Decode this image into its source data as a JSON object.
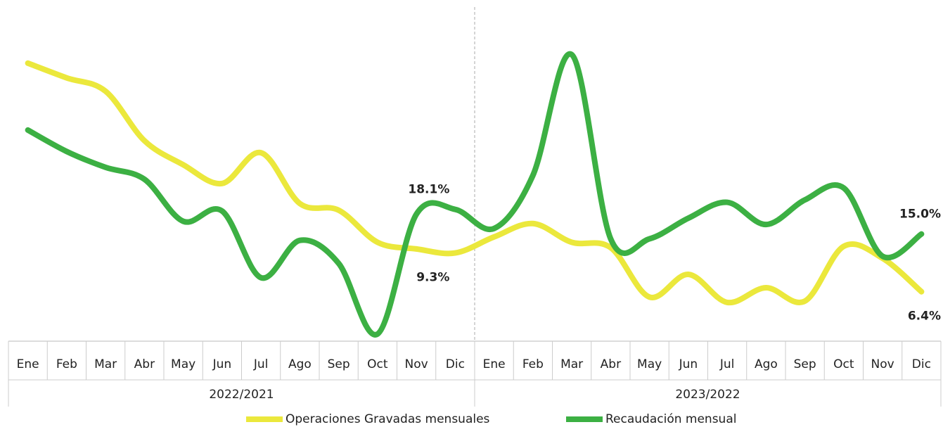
{
  "chart_data": {
    "type": "line",
    "categories": [
      "Ene",
      "Feb",
      "Mar",
      "Abr",
      "May",
      "Jun",
      "Jul",
      "Ago",
      "Sep",
      "Oct",
      "Nov",
      "Dic",
      "Ene",
      "Feb",
      "Mar",
      "Abr",
      "May",
      "Jun",
      "Jul",
      "Ago",
      "Sep",
      "Oct",
      "Nov",
      "Dic"
    ],
    "groups": [
      "2022/2021",
      "2023/2022"
    ],
    "ylim": [
      1.5,
      43.6
    ],
    "y2lim": [
      2.7,
      27.7
    ],
    "series": [
      {
        "name": "Operaciones Gravadas mensuales",
        "color": "#ebe83c",
        "axis": "y2",
        "values": [
          23.5,
          22.4,
          21.4,
          17.7,
          15.9,
          14.5,
          16.8,
          13.0,
          12.5,
          10.1,
          9.6,
          9.3,
          10.5,
          11.5,
          10.1,
          9.7,
          6.0,
          7.7,
          5.6,
          6.7,
          5.7,
          9.8,
          8.9,
          6.4
        ],
        "value_labels": [
          null,
          null,
          null,
          null,
          null,
          null,
          null,
          null,
          null,
          null,
          null,
          "9.3%",
          null,
          null,
          null,
          null,
          null,
          null,
          null,
          null,
          null,
          null,
          null,
          "6.4%"
        ]
      },
      {
        "name": "Recaudación mensual",
        "color": "#3cb043",
        "values": [
          28.1,
          25.4,
          23.4,
          21.9,
          16.6,
          17.9,
          9.5,
          14.2,
          11.3,
          2.4,
          17.5,
          18.1,
          15.7,
          22.4,
          37.6,
          14.4,
          14.4,
          17.0,
          19.0,
          16.2,
          19.3,
          20.8,
          12.2,
          15.0
        ],
        "value_labels": [
          null,
          null,
          null,
          null,
          null,
          null,
          null,
          null,
          null,
          null,
          null,
          "18.1%",
          null,
          null,
          null,
          null,
          null,
          null,
          null,
          null,
          null,
          null,
          null,
          "15.0%"
        ]
      }
    ]
  }
}
